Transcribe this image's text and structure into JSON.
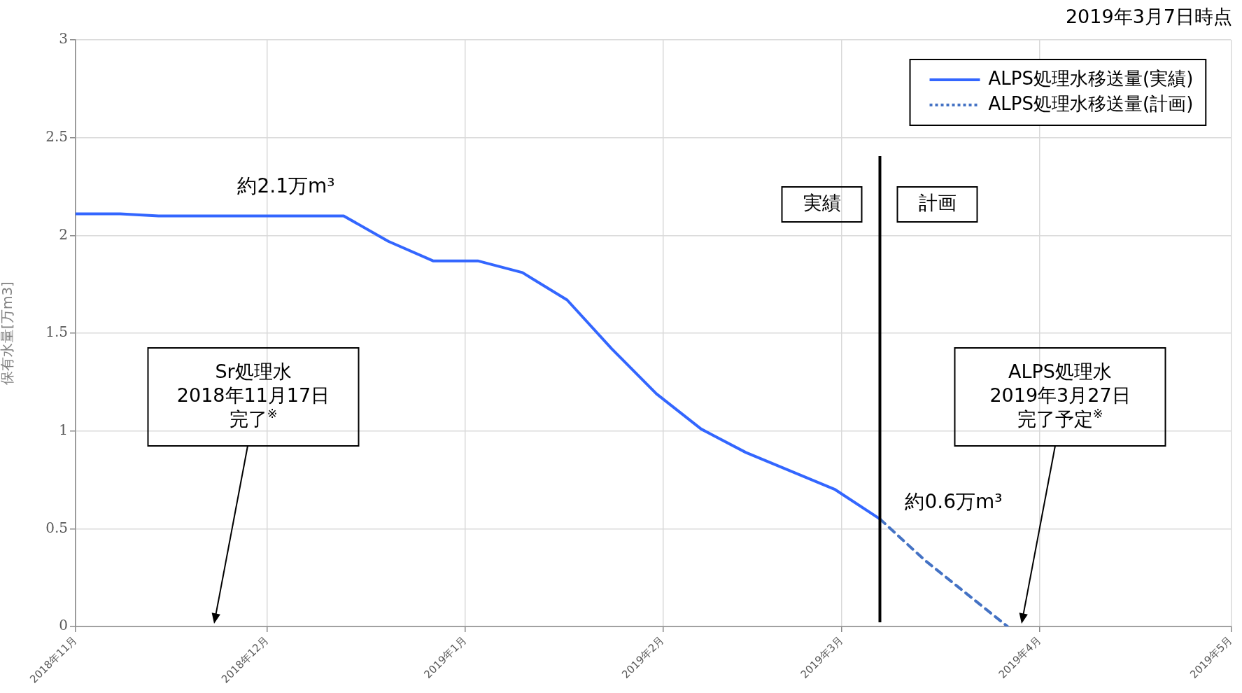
{
  "chart_data": {
    "type": "line",
    "subtitle": "2019年3月7日時点",
    "ylabel": "保有水量[万m3]",
    "xlim": [
      "2018-11-01",
      "2019-05-01"
    ],
    "xticks": [
      {
        "value": "2018-11-01",
        "label": "2018年11月"
      },
      {
        "value": "2018-12-01",
        "label": "2018年12月"
      },
      {
        "value": "2019-01-01",
        "label": "2019年1月"
      },
      {
        "value": "2019-02-01",
        "label": "2019年2月"
      },
      {
        "value": "2019-03-01",
        "label": "2019年3月"
      },
      {
        "value": "2019-04-01",
        "label": "2019年4月"
      },
      {
        "value": "2019-05-01",
        "label": "2019年5月"
      }
    ],
    "ylim": [
      0,
      3
    ],
    "yticks": [
      0,
      0.5,
      1,
      1.5,
      2,
      2.5,
      3
    ],
    "series": [
      {
        "name": "ALPS処理水移送量(実績)",
        "color": "#3366ff",
        "line_style": "solid",
        "x": [
          "2018-11-01",
          "2018-11-08",
          "2018-11-14",
          "2018-12-06",
          "2018-12-13",
          "2018-12-20",
          "2018-12-27",
          "2019-01-03",
          "2019-01-10",
          "2019-01-17",
          "2019-01-24",
          "2019-01-31",
          "2019-02-07",
          "2019-02-14",
          "2019-02-28",
          "2019-03-07"
        ],
        "values": [
          2.11,
          2.11,
          2.1,
          2.1,
          2.1,
          1.97,
          1.87,
          1.87,
          1.81,
          1.67,
          1.42,
          1.19,
          1.01,
          0.89,
          0.7,
          0.55
        ]
      },
      {
        "name": "ALPS処理水移送量(計画)",
        "color": "#4472c4",
        "line_style": "dashed",
        "x": [
          "2019-03-07",
          "2019-03-14",
          "2019-03-27"
        ],
        "values": [
          0.55,
          0.34,
          0
        ]
      }
    ],
    "ref_lines": [
      {
        "axis": "x",
        "value": "2019-03-07",
        "color": "#000000"
      }
    ],
    "annotations": [
      "実績",
      "計画",
      "約2.1万m³",
      "約0.6万m³",
      "Sr処理水",
      "2018年11月17日",
      "完了$^{※}$",
      "ALPS処理水",
      "2019年3月27日",
      "完了予定$^{※}$"
    ],
    "grid": true,
    "legend": "top right",
    "marker": "none"
  }
}
